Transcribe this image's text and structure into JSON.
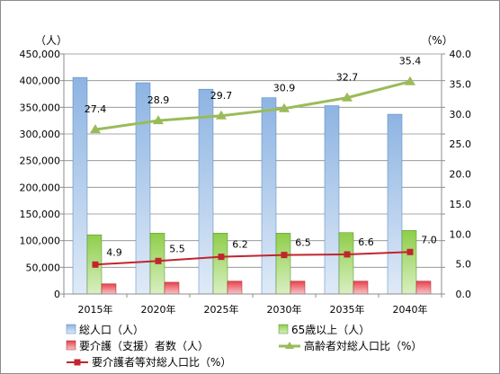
{
  "chart_data": {
    "type": "bar",
    "categories": [
      "2015年",
      "2020年",
      "2025年",
      "2030年",
      "2035年",
      "2040年"
    ],
    "y_left_unit": "（人）",
    "y_right_unit": "（%）",
    "y_left_ticks": [
      "0",
      "50,000",
      "100,000",
      "150,000",
      "200,000",
      "250,000",
      "300,000",
      "350,000",
      "400,000",
      "450,000"
    ],
    "y_right_ticks": [
      "0.0",
      "5.0",
      "10.0",
      "15.0",
      "20.0",
      "25.0",
      "30.0",
      "35.0",
      "40.0"
    ],
    "ylim_left": [
      0,
      450000
    ],
    "ylim_right": [
      0,
      40
    ],
    "grid": true,
    "legend_position": "bottom",
    "series": [
      {
        "name": "総人口（人）",
        "type": "bar",
        "axis": "left",
        "color": "#8db4e2",
        "values": [
          406000,
          396000,
          384000,
          368000,
          353000,
          337000
        ]
      },
      {
        "name": "65歳以上（人）",
        "type": "bar",
        "axis": "left",
        "color": "#9bd35a",
        "values": [
          111000,
          114000,
          114000,
          114000,
          115000,
          119000
        ]
      },
      {
        "name": "要介護（支援）者数（人）",
        "type": "bar",
        "axis": "left",
        "color": "#e8414c",
        "values": [
          19000,
          22000,
          24000,
          24000,
          24000,
          24000
        ]
      },
      {
        "name": "高齢者対総人口比（%）",
        "type": "line",
        "axis": "right",
        "color": "#9bbb59",
        "marker": "triangle",
        "values": [
          27.4,
          28.9,
          29.7,
          30.9,
          32.7,
          35.4
        ],
        "labels": [
          "27.4",
          "28.9",
          "29.7",
          "30.9",
          "32.7",
          "35.4"
        ]
      },
      {
        "name": "要介護者等対総人口比（%）",
        "type": "line",
        "axis": "right",
        "color": "#c0262d",
        "marker": "square",
        "values": [
          4.9,
          5.5,
          6.2,
          6.5,
          6.6,
          7.0
        ],
        "labels": [
          "4.9",
          "5.5",
          "6.2",
          "6.5",
          "6.6",
          "7.0"
        ]
      }
    ]
  }
}
